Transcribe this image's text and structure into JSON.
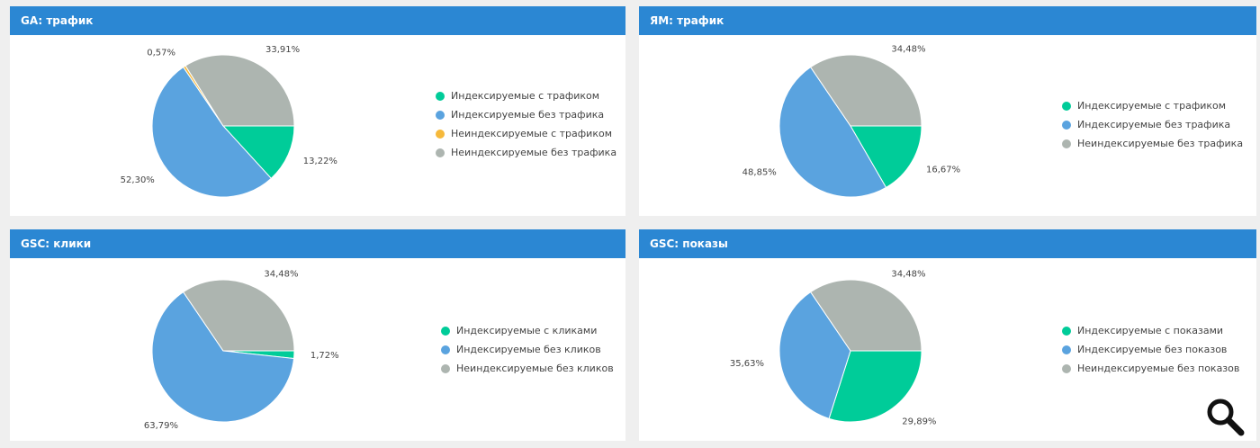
{
  "colors": {
    "header": "#2b87d3",
    "slice_green": "#00cc99",
    "slice_blue": "#5aa3df",
    "slice_orange": "#f6b93b",
    "slice_gray": "#adb5b0",
    "label": "#444444"
  },
  "icons": {
    "search": "search-icon"
  },
  "chart_data": [
    {
      "type": "pie",
      "title": "GA: трафик",
      "labels": [
        "Индексируемые с трафиком",
        "Индексируемые без трафика",
        "Неиндексируемые с трафиком",
        "Неиндексируемые без трафика"
      ],
      "values": [
        13.22,
        52.3,
        0.57,
        33.91
      ],
      "value_labels": [
        "13,22%",
        "52,30%",
        "0,57%",
        "33,91%"
      ],
      "colors": [
        "#00cc99",
        "#5aa3df",
        "#f6b93b",
        "#adb5b0"
      ],
      "legend_position": "right"
    },
    {
      "type": "pie",
      "title": "ЯМ: трафик",
      "labels": [
        "Индексируемые с трафиком",
        "Индексируемые без трафика",
        "Неиндексируемые без трафика"
      ],
      "values": [
        16.67,
        48.85,
        34.48
      ],
      "value_labels": [
        "16,67%",
        "48,85%",
        "34,48%"
      ],
      "colors": [
        "#00cc99",
        "#5aa3df",
        "#adb5b0"
      ],
      "legend_position": "right"
    },
    {
      "type": "pie",
      "title": "GSC: клики",
      "labels": [
        "Индексируемые с кликами",
        "Индексируемые без кликов",
        "Неиндексируемые без кликов"
      ],
      "values": [
        1.72,
        63.79,
        34.48
      ],
      "value_labels": [
        "1,72%",
        "63,79%",
        "34,48%"
      ],
      "colors": [
        "#00cc99",
        "#5aa3df",
        "#adb5b0"
      ],
      "legend_position": "right"
    },
    {
      "type": "pie",
      "title": "GSC: показы",
      "labels": [
        "Индексируемые с показами",
        "Индексируемые без показов",
        "Неиндексируемые без показов"
      ],
      "values": [
        29.89,
        35.63,
        34.48
      ],
      "value_labels": [
        "29,89%",
        "35,63%",
        "34,48%"
      ],
      "colors": [
        "#00cc99",
        "#5aa3df",
        "#adb5b0"
      ],
      "legend_position": "right"
    }
  ]
}
